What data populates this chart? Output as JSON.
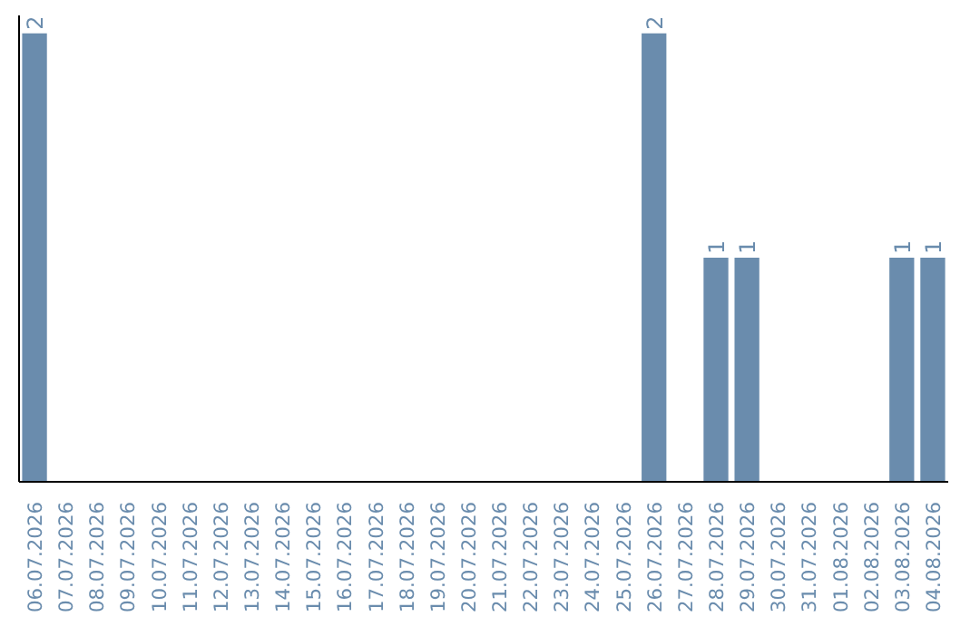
{
  "chart_data": {
    "type": "bar",
    "categories": [
      "06.07.2026",
      "07.07.2026",
      "08.07.2026",
      "09.07.2026",
      "10.07.2026",
      "11.07.2026",
      "12.07.2026",
      "13.07.2026",
      "14.07.2026",
      "15.07.2026",
      "16.07.2026",
      "17.07.2026",
      "18.07.2026",
      "19.07.2026",
      "20.07.2026",
      "21.07.2026",
      "22.07.2026",
      "23.07.2026",
      "24.07.2026",
      "25.07.2026",
      "26.07.2026",
      "27.07.2026",
      "28.07.2026",
      "29.07.2026",
      "30.07.2026",
      "31.07.2026",
      "01.08.2026",
      "02.08.2026",
      "03.08.2026",
      "04.08.2026"
    ],
    "values": [
      2,
      0,
      0,
      0,
      0,
      0,
      0,
      0,
      0,
      0,
      0,
      0,
      0,
      0,
      0,
      0,
      0,
      0,
      0,
      0,
      2,
      0,
      1,
      1,
      0,
      0,
      0,
      0,
      1,
      1
    ],
    "value_labels": [
      "2",
      null,
      null,
      null,
      null,
      null,
      null,
      null,
      null,
      null,
      null,
      null,
      null,
      null,
      null,
      null,
      null,
      null,
      null,
      null,
      "2",
      null,
      "1",
      "1",
      null,
      null,
      null,
      null,
      "1",
      "1"
    ],
    "color": "#6a8cad",
    "grid": false,
    "tick_labels": "x"
  }
}
